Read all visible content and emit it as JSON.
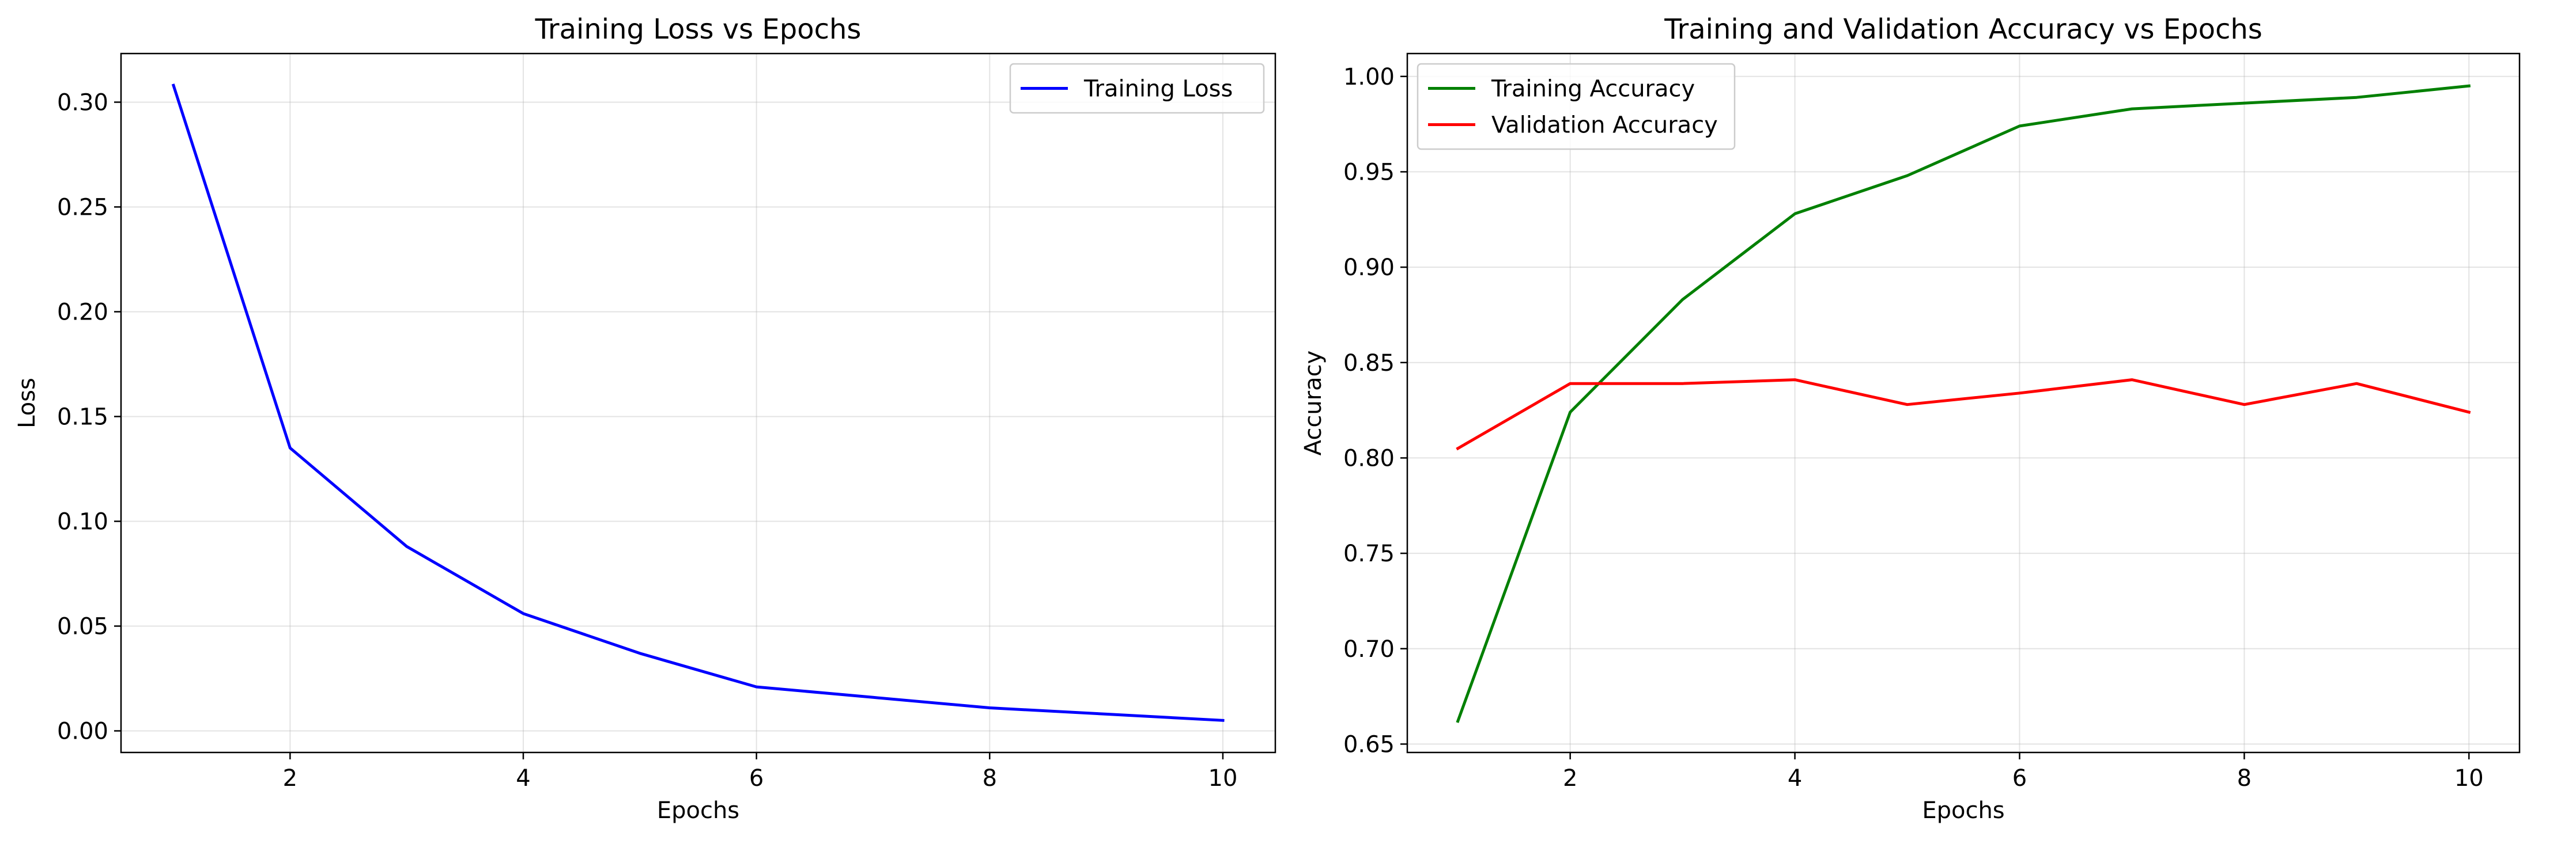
{
  "chart_data": [
    {
      "type": "line",
      "title": "Training Loss vs Epochs",
      "xlabel": "Epochs",
      "ylabel": "Loss",
      "xlim": [
        0.55,
        10.45
      ],
      "ylim": [
        -0.0103,
        0.3232
      ],
      "xticks": [
        2,
        4,
        6,
        8,
        10
      ],
      "yticks": [
        0.0,
        0.05,
        0.1,
        0.15,
        0.2,
        0.25,
        0.3
      ],
      "ytick_decimals": 2,
      "grid": true,
      "legend_position": "top-right",
      "x": [
        1,
        2,
        3,
        4,
        5,
        6,
        7,
        8,
        9,
        10
      ],
      "series": [
        {
          "name": "Training Loss",
          "color": "#0000ff",
          "values": [
            0.308,
            0.135,
            0.088,
            0.056,
            0.037,
            0.021,
            0.016,
            0.011,
            0.008,
            0.005
          ]
        }
      ]
    },
    {
      "type": "line",
      "title": "Training and Validation Accuracy vs Epochs",
      "xlabel": "Epochs",
      "ylabel": "Accuracy",
      "xlim": [
        0.55,
        10.45
      ],
      "ylim": [
        0.6456,
        1.012
      ],
      "xticks": [
        2,
        4,
        6,
        8,
        10
      ],
      "yticks": [
        0.65,
        0.7,
        0.75,
        0.8,
        0.85,
        0.9,
        0.95,
        1.0
      ],
      "ytick_decimals": 2,
      "grid": true,
      "legend_position": "top-left",
      "x": [
        1,
        2,
        3,
        4,
        5,
        6,
        7,
        8,
        9,
        10
      ],
      "series": [
        {
          "name": "Training Accuracy",
          "color": "#008000",
          "values": [
            0.662,
            0.824,
            0.883,
            0.928,
            0.948,
            0.974,
            0.983,
            0.986,
            0.989,
            0.995
          ]
        },
        {
          "name": "Validation Accuracy",
          "color": "#ff0000",
          "values": [
            0.805,
            0.839,
            0.839,
            0.841,
            0.828,
            0.834,
            0.841,
            0.828,
            0.839,
            0.824
          ]
        }
      ]
    }
  ]
}
